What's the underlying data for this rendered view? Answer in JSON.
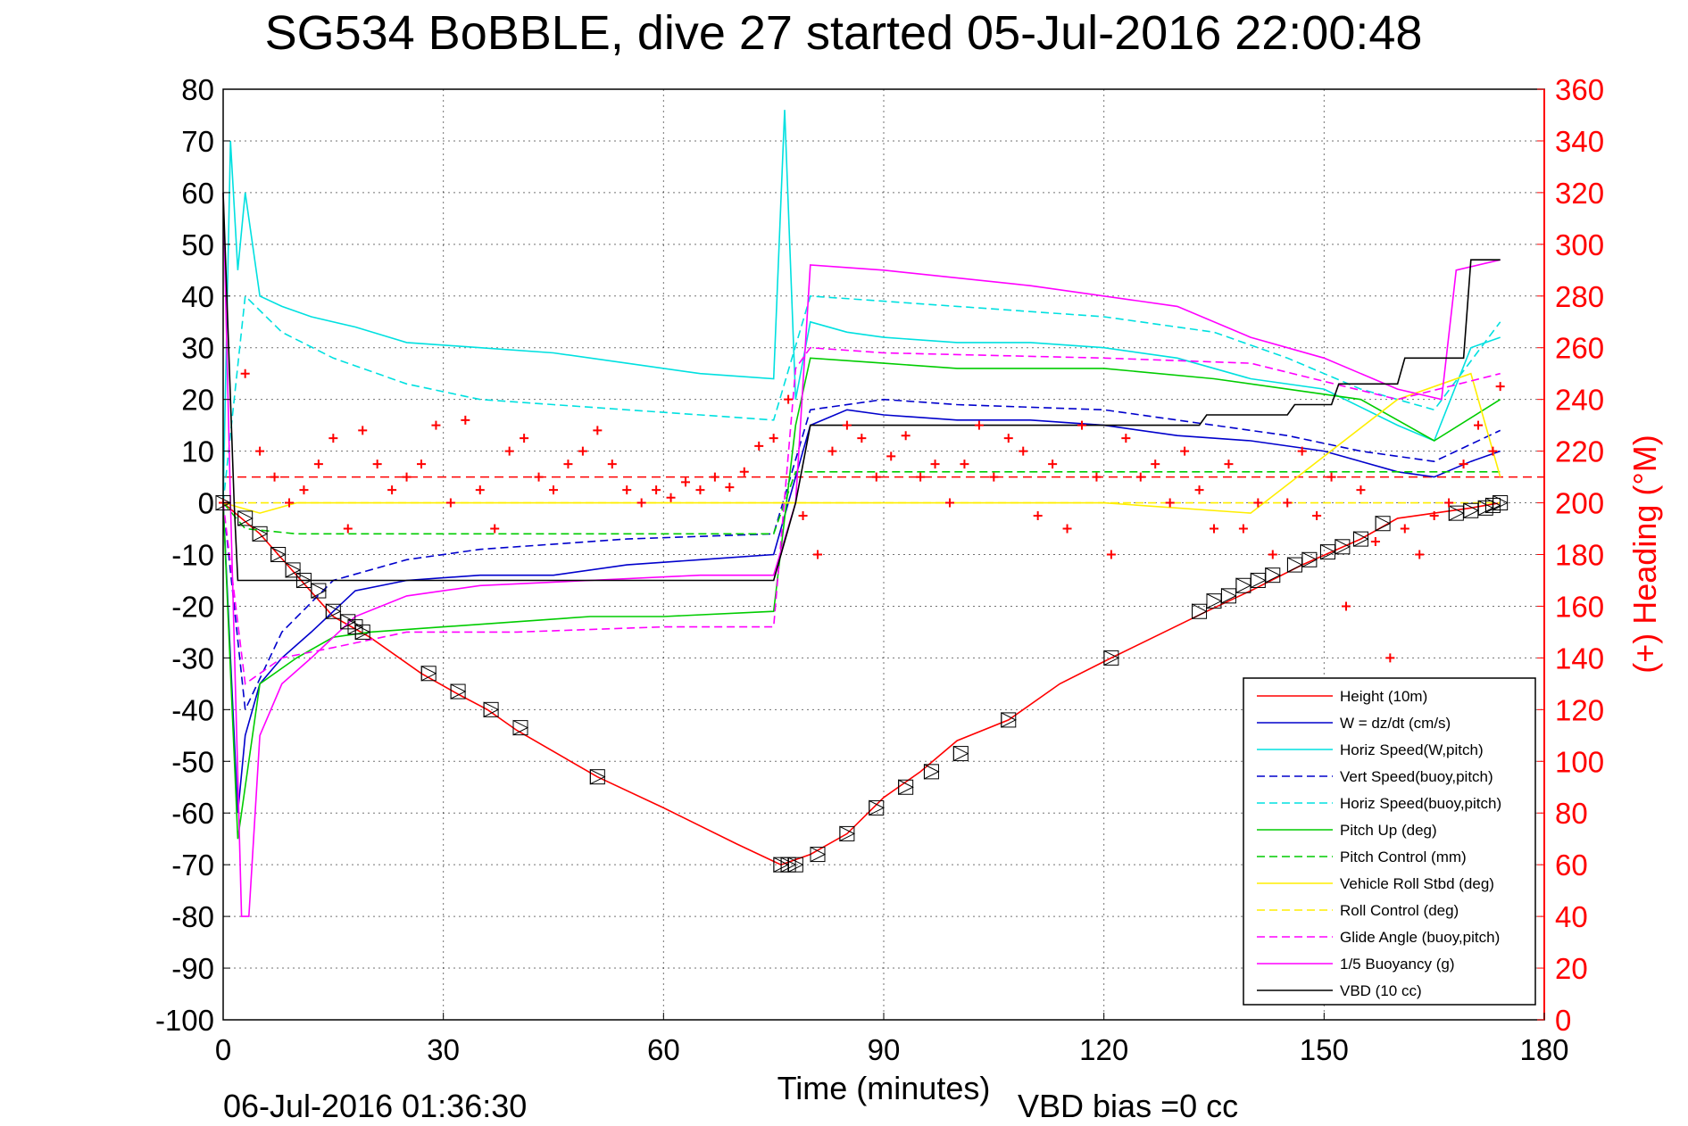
{
  "title": "SG534 BoBBLE, dive 27 started 05-Jul-2016 22:00:48",
  "footer": {
    "end_time": "06-Jul-2016 01:36:30",
    "vbd_bias": "VBD bias =0 cc"
  },
  "chart_data": {
    "type": "line",
    "xlabel": "Time (minutes)",
    "ylabel_right": "(+) Heading (°M)",
    "xlim": [
      0,
      180
    ],
    "ylim_left": [
      -100,
      80
    ],
    "ylim_right": [
      0,
      360
    ],
    "x_ticks": [
      "0",
      "30",
      "60",
      "90",
      "120",
      "150",
      "180"
    ],
    "y_ticks_left": [
      "80",
      "70",
      "60",
      "50",
      "40",
      "30",
      "20",
      "10",
      "0",
      "-10",
      "-20",
      "-30",
      "-40",
      "-50",
      "-60",
      "-70",
      "-80",
      "-90",
      "-100"
    ],
    "y_ticks_right": [
      "360",
      "340",
      "320",
      "300",
      "280",
      "260",
      "240",
      "220",
      "200",
      "180",
      "160",
      "140",
      "120",
      "100",
      "80",
      "60",
      "40",
      "20",
      "0"
    ],
    "grid": true,
    "legend_position": "bottom-right",
    "colors": {
      "height": "#ff0000",
      "w": "#0000cc",
      "horiz_speed": "#00e0e0",
      "pitch": "#00cc00",
      "roll": "#ffee00",
      "glide": "#ff00ff",
      "vbd": "#000000",
      "heading": "#ff0000"
    },
    "series": [
      {
        "name": "Height (10m)",
        "style": "solid",
        "color": "#ff0000",
        "x": [
          0,
          5,
          10,
          15,
          20,
          27,
          32,
          36,
          40,
          51,
          60,
          70,
          76,
          80,
          85,
          90,
          95,
          100,
          107,
          114,
          121,
          134,
          140,
          147,
          155,
          160,
          170,
          174
        ],
        "y": [
          0,
          -6,
          -14,
          -22,
          -26,
          -33,
          -37,
          -40,
          -44,
          -53,
          -59,
          -66,
          -70,
          -68,
          -64,
          -57,
          -52,
          -46,
          -42,
          -35,
          -30,
          -21,
          -17,
          -12,
          -7,
          -3,
          -1,
          0
        ]
      },
      {
        "name": "W = dz/dt (cm/s)",
        "style": "solid",
        "color": "#0000cc",
        "x": [
          0,
          2,
          3,
          5,
          8,
          12,
          18,
          25,
          35,
          45,
          55,
          65,
          75,
          78,
          80,
          85,
          90,
          100,
          110,
          120,
          130,
          140,
          150,
          160,
          165,
          170,
          174
        ],
        "y": [
          0,
          -60,
          -45,
          -35,
          -30,
          -25,
          -17,
          -15,
          -14,
          -14,
          -12,
          -11,
          -10,
          5,
          15,
          18,
          17,
          16,
          16,
          15,
          13,
          12,
          10,
          6,
          5,
          8,
          10
        ]
      },
      {
        "name": "Horiz Speed(W,pitch)",
        "style": "solid",
        "color": "#00e0e0",
        "x": [
          0,
          1,
          2,
          3,
          5,
          8,
          12,
          18,
          25,
          35,
          45,
          55,
          65,
          75,
          76.5,
          78,
          80,
          85,
          90,
          100,
          110,
          120,
          130,
          140,
          150,
          160,
          165,
          170,
          174
        ],
        "y": [
          0,
          70,
          45,
          60,
          40,
          38,
          36,
          34,
          31,
          30,
          29,
          27,
          25,
          24,
          76,
          20,
          35,
          33,
          32,
          31,
          31,
          30,
          28,
          24,
          22,
          15,
          12,
          30,
          32
        ]
      },
      {
        "name": "Vert Speed(buoy,pitch)",
        "style": "dashed",
        "color": "#0000cc",
        "x": [
          0,
          3,
          8,
          15,
          25,
          35,
          45,
          55,
          65,
          75,
          80,
          90,
          100,
          120,
          135,
          145,
          155,
          165,
          174
        ],
        "y": [
          0,
          -40,
          -25,
          -15,
          -11,
          -9,
          -8,
          -7,
          -6.5,
          -6,
          18,
          20,
          19,
          18,
          15,
          13,
          10,
          8,
          14
        ]
      },
      {
        "name": "Horiz Speed(buoy,pitch)",
        "style": "dashed",
        "color": "#00e0e0",
        "x": [
          0,
          3,
          8,
          15,
          25,
          35,
          45,
          55,
          65,
          75,
          80,
          90,
          100,
          120,
          135,
          145,
          155,
          165,
          174
        ],
        "y": [
          0,
          40,
          33,
          28,
          23,
          20,
          19,
          18,
          17,
          16,
          40,
          39,
          38,
          36,
          33,
          28,
          22,
          18,
          35
        ]
      },
      {
        "name": "Pitch Up (deg)",
        "style": "solid",
        "color": "#00cc00",
        "x": [
          0,
          2,
          5,
          10,
          15,
          20,
          30,
          40,
          50,
          60,
          75,
          78,
          80,
          90,
          100,
          120,
          135,
          145,
          155,
          165,
          174
        ],
        "y": [
          0,
          -65,
          -35,
          -30,
          -26,
          -25,
          -24,
          -23,
          -22,
          -22,
          -21,
          15,
          28,
          27,
          26,
          26,
          24,
          22,
          20,
          12,
          20
        ]
      },
      {
        "name": "Pitch Control (mm)",
        "style": "dashed",
        "color": "#00cc00",
        "x": [
          0,
          3,
          10,
          20,
          40,
          60,
          75,
          78,
          100,
          130,
          160,
          174
        ],
        "y": [
          0,
          -5,
          -6,
          -6,
          -6,
          -6,
          -6,
          6,
          6,
          6,
          6,
          6
        ]
      },
      {
        "name": "Vehicle Roll Stbd (deg)",
        "style": "solid",
        "color": "#ffee00",
        "x": [
          0,
          5,
          10,
          20,
          40,
          60,
          75,
          80,
          100,
          120,
          140,
          160,
          170,
          174
        ],
        "y": [
          0,
          -2,
          0,
          0,
          0,
          0,
          0,
          0,
          0,
          0,
          -2,
          20,
          25,
          5
        ]
      },
      {
        "name": "Roll Control (deg)",
        "style": "dashed",
        "color": "#ffee00",
        "x": [
          0,
          20,
          40,
          60,
          75,
          80,
          100,
          120,
          140,
          160,
          174
        ],
        "y": [
          0,
          0,
          0,
          0,
          0,
          0,
          0,
          0,
          0,
          0,
          0
        ]
      },
      {
        "name": "Glide Angle (buoy,pitch)",
        "style": "dashed",
        "color": "#ff00ff",
        "x": [
          0,
          3,
          8,
          15,
          25,
          40,
          60,
          75,
          78,
          80,
          90,
          120,
          140,
          160,
          174
        ],
        "y": [
          0,
          -35,
          -30,
          -28,
          -25,
          -25,
          -24,
          -24,
          26,
          30,
          29,
          28,
          27,
          20,
          25
        ]
      },
      {
        "name": "1/5 Buoyancy (g)",
        "style": "solid",
        "color": "#ff00ff",
        "x": [
          0,
          1,
          2.5,
          3.5,
          5,
          8,
          12,
          18,
          25,
          35,
          50,
          65,
          75,
          78,
          80,
          90,
          110,
          130,
          140,
          150,
          160,
          166,
          168,
          174
        ],
        "y": [
          60,
          0,
          -80,
          -80,
          -45,
          -35,
          -30,
          -22,
          -18,
          -16,
          -15,
          -14,
          -14,
          0,
          46,
          45,
          42,
          38,
          32,
          28,
          22,
          20,
          45,
          47
        ]
      },
      {
        "name": "VBD (10 cc)",
        "style": "solid",
        "color": "#000000",
        "x": [
          0,
          1.5,
          2,
          75,
          78,
          80,
          133,
          134,
          145,
          146,
          151,
          152,
          160,
          161,
          169,
          170,
          174
        ],
        "y": [
          60,
          0,
          -15,
          -15,
          0,
          15,
          15,
          17,
          17,
          19,
          19,
          23,
          23,
          28,
          28,
          47,
          47
        ]
      }
    ],
    "heading_series": {
      "name": "(+) Heading (°M)",
      "marker": "+",
      "color": "#ff0000",
      "x": [
        0,
        3,
        5,
        7,
        9,
        11,
        13,
        15,
        17,
        19,
        21,
        23,
        25,
        27,
        29,
        31,
        33,
        35,
        37,
        39,
        41,
        43,
        45,
        47,
        49,
        51,
        53,
        55,
        57,
        59,
        61,
        63,
        65,
        67,
        69,
        71,
        73,
        75,
        77,
        79,
        81,
        83,
        85,
        87,
        89,
        91,
        93,
        95,
        97,
        99,
        101,
        103,
        105,
        107,
        109,
        111,
        113,
        115,
        117,
        119,
        121,
        123,
        125,
        127,
        129,
        131,
        133,
        135,
        137,
        139,
        141,
        143,
        145,
        147,
        149,
        151,
        153,
        155,
        157,
        159,
        161,
        163,
        165,
        167,
        169,
        171,
        173,
        174
      ],
      "y": [
        200,
        250,
        220,
        210,
        200,
        205,
        215,
        225,
        190,
        228,
        215,
        205,
        210,
        215,
        230,
        200,
        232,
        205,
        190,
        220,
        225,
        210,
        205,
        215,
        220,
        228,
        215,
        205,
        200,
        205,
        202,
        208,
        205,
        210,
        206,
        212,
        222,
        225,
        240,
        195,
        180,
        220,
        230,
        225,
        210,
        218,
        226,
        210,
        215,
        200,
        215,
        230,
        210,
        225,
        220,
        195,
        215,
        190,
        230,
        210,
        180,
        225,
        210,
        215,
        200,
        220,
        205,
        190,
        215,
        190,
        200,
        180,
        200,
        220,
        195,
        210,
        160,
        205,
        185,
        140,
        190,
        180,
        195,
        200,
        215,
        230,
        220,
        245
      ]
    },
    "reference_lines": [
      {
        "axis": "right",
        "value": 210,
        "color": "#ff0000",
        "style": "dashed"
      }
    ],
    "marker_series": {
      "name": "Height markers",
      "marker": "triangle-box",
      "color": "#000000",
      "x": [
        0,
        3,
        5,
        7.5,
        9.5,
        11,
        13,
        15,
        17,
        18,
        19,
        28,
        32,
        36.5,
        40.5,
        51,
        76,
        77,
        78,
        81,
        85,
        89,
        93,
        96.5,
        100.5,
        107,
        121,
        133,
        135,
        137,
        139,
        141,
        143,
        146,
        148,
        150.5,
        152.5,
        155,
        158,
        168,
        170,
        172,
        173,
        174
      ],
      "y": [
        0,
        -3,
        -6,
        -10,
        -13,
        -15,
        -17,
        -21,
        -23,
        -24,
        -25,
        -33,
        -36.5,
        -40,
        -43.5,
        -53,
        -70,
        -70,
        -70,
        -68,
        -64,
        -59,
        -55,
        -52,
        -48.5,
        -42,
        -30,
        -21,
        -19,
        -18,
        -16,
        -15,
        -14,
        -12,
        -11,
        -9.5,
        -8.5,
        -7,
        -4,
        -2,
        -1.5,
        -1,
        -0.5,
        0
      ]
    }
  }
}
